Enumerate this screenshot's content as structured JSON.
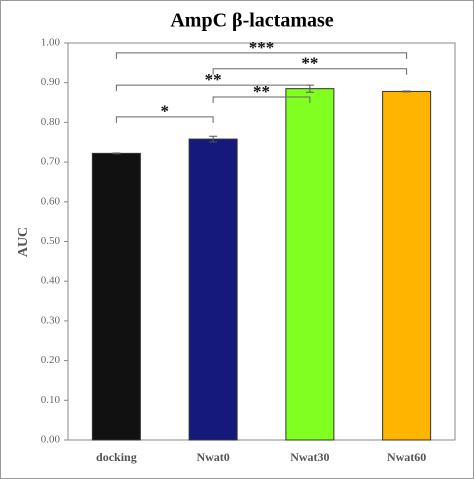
{
  "chart_data": {
    "type": "bar",
    "title": "AmpC β-lactamase",
    "y_label": "AUC",
    "categories": [
      "docking",
      "Nwat0",
      "Nwat30",
      "Nwat60"
    ],
    "values": [
      0.722,
      0.758,
      0.885,
      0.878
    ],
    "errors": [
      0.001,
      0.007,
      0.009,
      0.001
    ],
    "colors": [
      "#111111",
      "#14197a",
      "#80ff20",
      "#ffb400"
    ],
    "ylim": [
      0,
      1
    ],
    "yticks": [
      {
        "value": 0,
        "label": "0.00"
      },
      {
        "value": 0.1,
        "label": "0.10"
      },
      {
        "value": 0.2,
        "label": "0.20"
      },
      {
        "value": 0.3,
        "label": "0.30"
      },
      {
        "value": 0.4,
        "label": "0.40"
      },
      {
        "value": 0.5,
        "label": "0.50"
      },
      {
        "value": 0.6,
        "label": "0.60"
      },
      {
        "value": 0.7,
        "label": "0.70"
      },
      {
        "value": 0.8,
        "label": "0.80"
      },
      {
        "value": 0.9,
        "label": "0.90"
      },
      {
        "value": 1,
        "label": "1.00"
      }
    ],
    "annotations": [
      {
        "text": "***",
        "from": 0,
        "to": 3,
        "y": 0.975
      },
      {
        "text": "**",
        "from": 1,
        "to": 3,
        "y": 0.935
      },
      {
        "text": "**",
        "from": 0,
        "to": 2,
        "y": 0.894
      },
      {
        "text": "**",
        "from": 1,
        "to": 2,
        "y": 0.864
      },
      {
        "text": "*",
        "from": 0,
        "to": 1,
        "y": 0.814
      }
    ]
  }
}
